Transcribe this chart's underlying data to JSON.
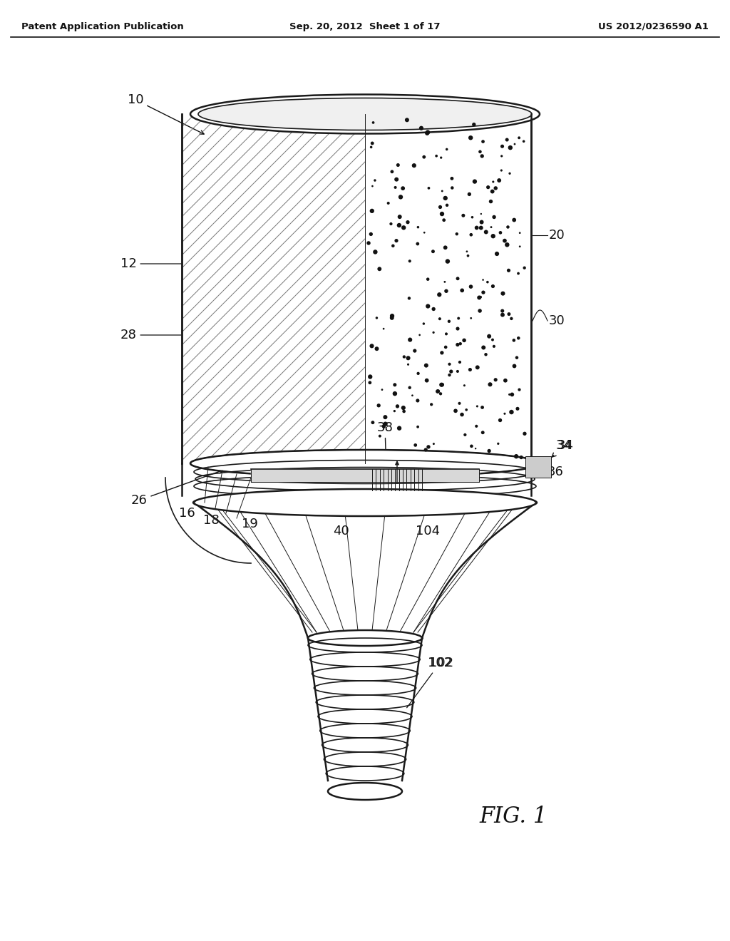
{
  "header_left": "Patent Application Publication",
  "header_center": "Sep. 20, 2012  Sheet 1 of 17",
  "header_right": "US 2012/0236590 A1",
  "fig_label": "FIG. 1",
  "background_color": "#ffffff",
  "line_color": "#1a1a1a"
}
